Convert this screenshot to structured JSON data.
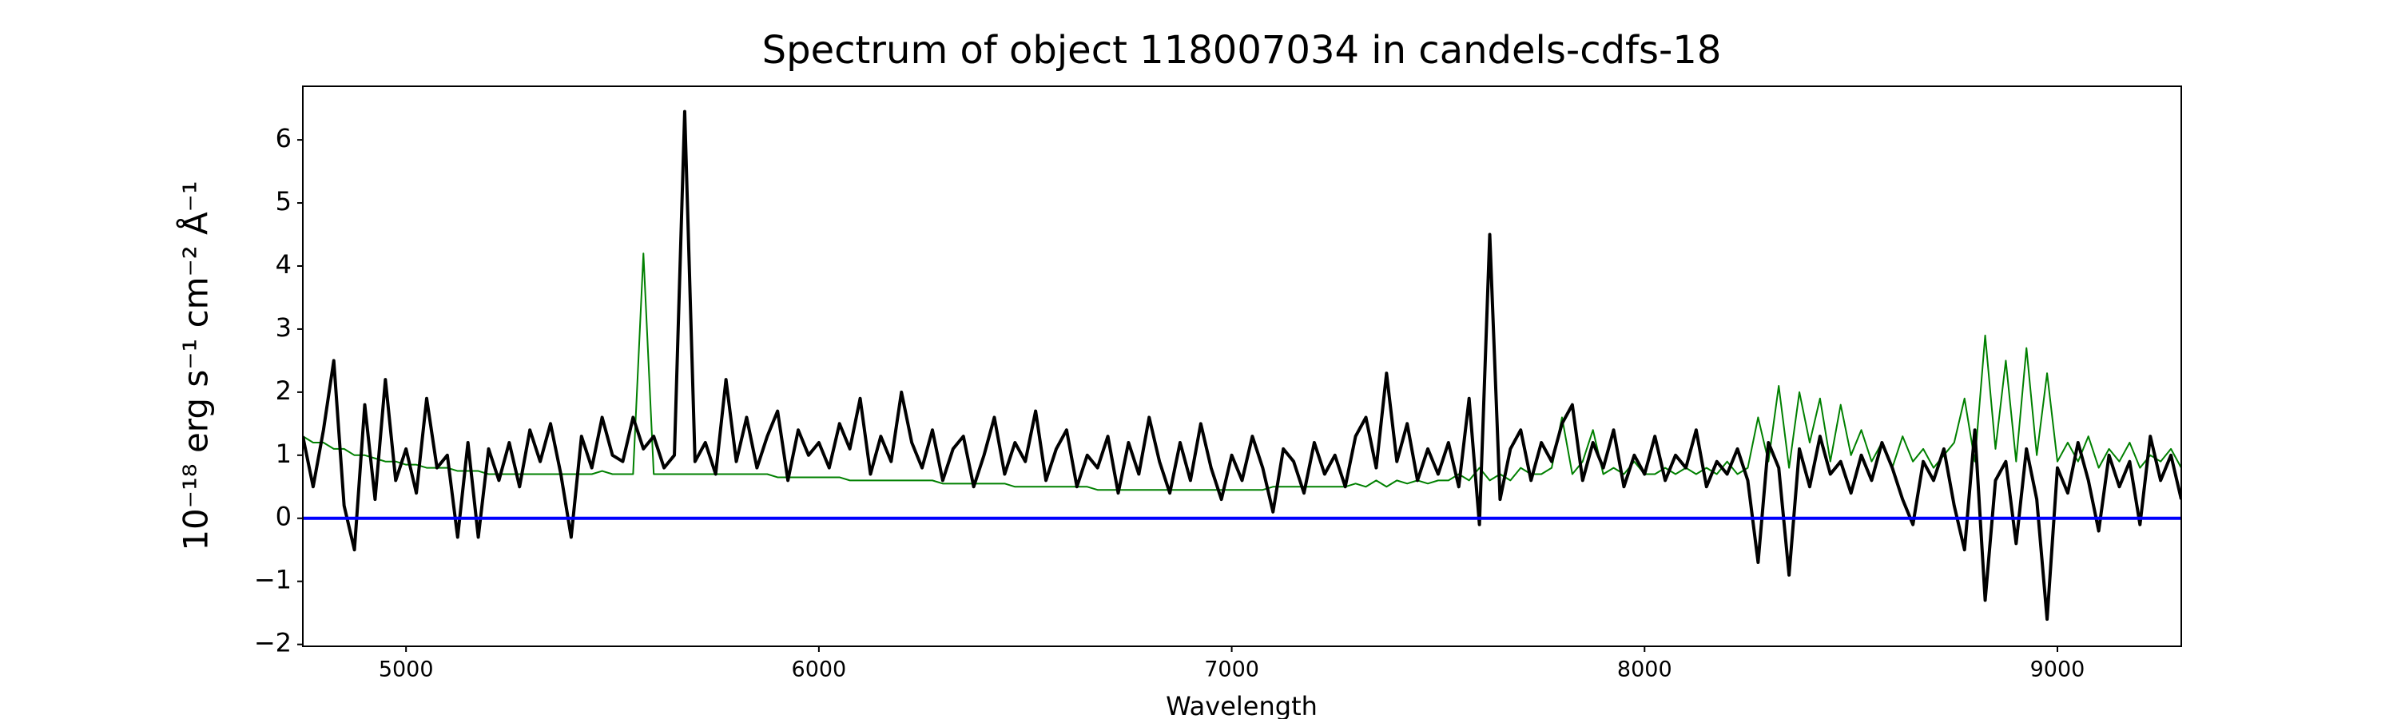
{
  "chart_data": {
    "type": "line",
    "title": "Spectrum of object 118007034 in candels-cdfs-18",
    "xlabel": "Wavelength",
    "ylabel": "10⁻¹⁸ erg s⁻¹ cm⁻² Å⁻¹",
    "xlim": [
      4750,
      9300
    ],
    "ylim": [
      -2.03,
      6.85
    ],
    "xticks": [
      5000,
      6000,
      7000,
      8000,
      9000
    ],
    "yticks": [
      {
        "value": -2,
        "label": "−2"
      },
      {
        "value": -1,
        "label": "−1"
      },
      0,
      1,
      2,
      3,
      4,
      5,
      6
    ],
    "grid": false,
    "x": [
      4750,
      4775,
      4800,
      4825,
      4850,
      4875,
      4900,
      4925,
      4950,
      4975,
      5000,
      5025,
      5050,
      5075,
      5100,
      5125,
      5150,
      5175,
      5200,
      5225,
      5250,
      5275,
      5300,
      5325,
      5350,
      5375,
      5400,
      5425,
      5450,
      5475,
      5500,
      5525,
      5550,
      5575,
      5600,
      5625,
      5650,
      5675,
      5700,
      5725,
      5750,
      5775,
      5800,
      5825,
      5850,
      5875,
      5900,
      5925,
      5950,
      5975,
      6000,
      6025,
      6050,
      6075,
      6100,
      6125,
      6150,
      6175,
      6200,
      6225,
      6250,
      6275,
      6300,
      6325,
      6350,
      6375,
      6400,
      6425,
      6450,
      6475,
      6500,
      6525,
      6550,
      6575,
      6600,
      6625,
      6650,
      6675,
      6700,
      6725,
      6750,
      6775,
      6800,
      6825,
      6850,
      6875,
      6900,
      6925,
      6950,
      6975,
      7000,
      7025,
      7050,
      7075,
      7100,
      7125,
      7150,
      7175,
      7200,
      7225,
      7250,
      7275,
      7300,
      7325,
      7350,
      7375,
      7400,
      7425,
      7450,
      7475,
      7500,
      7525,
      7550,
      7575,
      7600,
      7625,
      7650,
      7675,
      7700,
      7725,
      7750,
      7775,
      7800,
      7825,
      7850,
      7875,
      7900,
      7925,
      7950,
      7975,
      8000,
      8025,
      8050,
      8075,
      8100,
      8125,
      8150,
      8175,
      8200,
      8225,
      8250,
      8275,
      8300,
      8325,
      8350,
      8375,
      8400,
      8425,
      8450,
      8475,
      8500,
      8525,
      8550,
      8575,
      8600,
      8625,
      8650,
      8675,
      8700,
      8725,
      8750,
      8775,
      8800,
      8825,
      8850,
      8875,
      8900,
      8925,
      8950,
      8975,
      9000,
      9025,
      9050,
      9075,
      9100,
      9125,
      9150,
      9175,
      9200,
      9225,
      9250,
      9275,
      9300
    ],
    "series": [
      {
        "color": "#008000",
        "width": 2,
        "values": [
          1.3,
          1.2,
          1.2,
          1.1,
          1.1,
          1.0,
          1.0,
          0.95,
          0.9,
          0.9,
          0.85,
          0.85,
          0.8,
          0.8,
          0.8,
          0.75,
          0.75,
          0.75,
          0.7,
          0.7,
          0.7,
          0.7,
          0.7,
          0.7,
          0.7,
          0.7,
          0.7,
          0.7,
          0.7,
          0.75,
          0.7,
          0.7,
          0.7,
          4.2,
          0.7,
          0.7,
          0.7,
          0.7,
          0.7,
          0.7,
          0.7,
          0.7,
          0.7,
          0.7,
          0.7,
          0.7,
          0.65,
          0.65,
          0.65,
          0.65,
          0.65,
          0.65,
          0.65,
          0.6,
          0.6,
          0.6,
          0.6,
          0.6,
          0.6,
          0.6,
          0.6,
          0.6,
          0.55,
          0.55,
          0.55,
          0.55,
          0.55,
          0.55,
          0.55,
          0.5,
          0.5,
          0.5,
          0.5,
          0.5,
          0.5,
          0.5,
          0.5,
          0.45,
          0.45,
          0.45,
          0.45,
          0.45,
          0.45,
          0.45,
          0.45,
          0.45,
          0.45,
          0.45,
          0.45,
          0.45,
          0.45,
          0.45,
          0.45,
          0.45,
          0.5,
          0.5,
          0.5,
          0.5,
          0.5,
          0.5,
          0.5,
          0.5,
          0.55,
          0.5,
          0.6,
          0.5,
          0.6,
          0.55,
          0.6,
          0.55,
          0.6,
          0.6,
          0.7,
          0.6,
          0.8,
          0.6,
          0.7,
          0.6,
          0.8,
          0.7,
          0.7,
          0.8,
          1.6,
          0.7,
          0.9,
          1.4,
          0.7,
          0.8,
          0.7,
          0.9,
          0.7,
          0.7,
          0.8,
          0.7,
          0.8,
          0.7,
          0.8,
          0.7,
          0.9,
          0.7,
          0.8,
          1.6,
          0.9,
          2.1,
          0.8,
          2.0,
          1.2,
          1.9,
          0.9,
          1.8,
          1.0,
          1.4,
          0.9,
          1.2,
          0.8,
          1.3,
          0.9,
          1.1,
          0.8,
          1.0,
          1.2,
          1.9,
          0.9,
          2.9,
          1.1,
          2.5,
          0.9,
          2.7,
          1.0,
          2.3,
          0.9,
          1.2,
          0.9,
          1.3,
          0.8,
          1.1,
          0.9,
          1.2,
          0.8,
          1.0,
          0.9,
          1.1,
          0.8
        ]
      },
      {
        "color": "#000000",
        "width": 4,
        "values": [
          1.3,
          0.5,
          1.4,
          2.5,
          0.2,
          -0.5,
          1.8,
          0.3,
          2.2,
          0.6,
          1.1,
          0.4,
          1.9,
          0.8,
          1.0,
          -0.3,
          1.2,
          -0.3,
          1.1,
          0.6,
          1.2,
          0.5,
          1.4,
          0.9,
          1.5,
          0.7,
          -0.3,
          1.3,
          0.8,
          1.6,
          1.0,
          0.9,
          1.6,
          1.1,
          1.3,
          0.8,
          1.0,
          6.45,
          0.9,
          1.2,
          0.7,
          2.2,
          0.9,
          1.6,
          0.8,
          1.3,
          1.7,
          0.6,
          1.4,
          1.0,
          1.2,
          0.8,
          1.5,
          1.1,
          1.9,
          0.7,
          1.3,
          0.9,
          2.0,
          1.2,
          0.8,
          1.4,
          0.6,
          1.1,
          1.3,
          0.5,
          1.0,
          1.6,
          0.7,
          1.2,
          0.9,
          1.7,
          0.6,
          1.1,
          1.4,
          0.5,
          1.0,
          0.8,
          1.3,
          0.4,
          1.2,
          0.7,
          1.6,
          0.9,
          0.4,
          1.2,
          0.6,
          1.5,
          0.8,
          0.3,
          1.0,
          0.6,
          1.3,
          0.8,
          0.1,
          1.1,
          0.9,
          0.4,
          1.2,
          0.7,
          1.0,
          0.5,
          1.3,
          1.6,
          0.8,
          2.3,
          0.9,
          1.5,
          0.6,
          1.1,
          0.7,
          1.2,
          0.5,
          1.9,
          -0.1,
          4.5,
          0.3,
          1.1,
          1.4,
          0.6,
          1.2,
          0.9,
          1.5,
          1.8,
          0.6,
          1.2,
          0.8,
          1.4,
          0.5,
          1.0,
          0.7,
          1.3,
          0.6,
          1.0,
          0.8,
          1.4,
          0.5,
          0.9,
          0.7,
          1.1,
          0.6,
          -0.7,
          1.2,
          0.8,
          -0.9,
          1.1,
          0.5,
          1.3,
          0.7,
          0.9,
          0.4,
          1.0,
          0.6,
          1.2,
          0.8,
          0.3,
          -0.1,
          0.9,
          0.6,
          1.1,
          0.2,
          -0.5,
          1.4,
          -1.3,
          0.6,
          0.9,
          -0.4,
          1.1,
          0.3,
          -1.6,
          0.8,
          0.4,
          1.2,
          0.6,
          -0.2,
          1.0,
          0.5,
          0.9,
          -0.1,
          1.3,
          0.6,
          1.0,
          0.3
        ]
      },
      {
        "color": "#0000ff",
        "width": 4,
        "x": [
          4750,
          9300
        ],
        "values": [
          0,
          0
        ]
      }
    ]
  }
}
